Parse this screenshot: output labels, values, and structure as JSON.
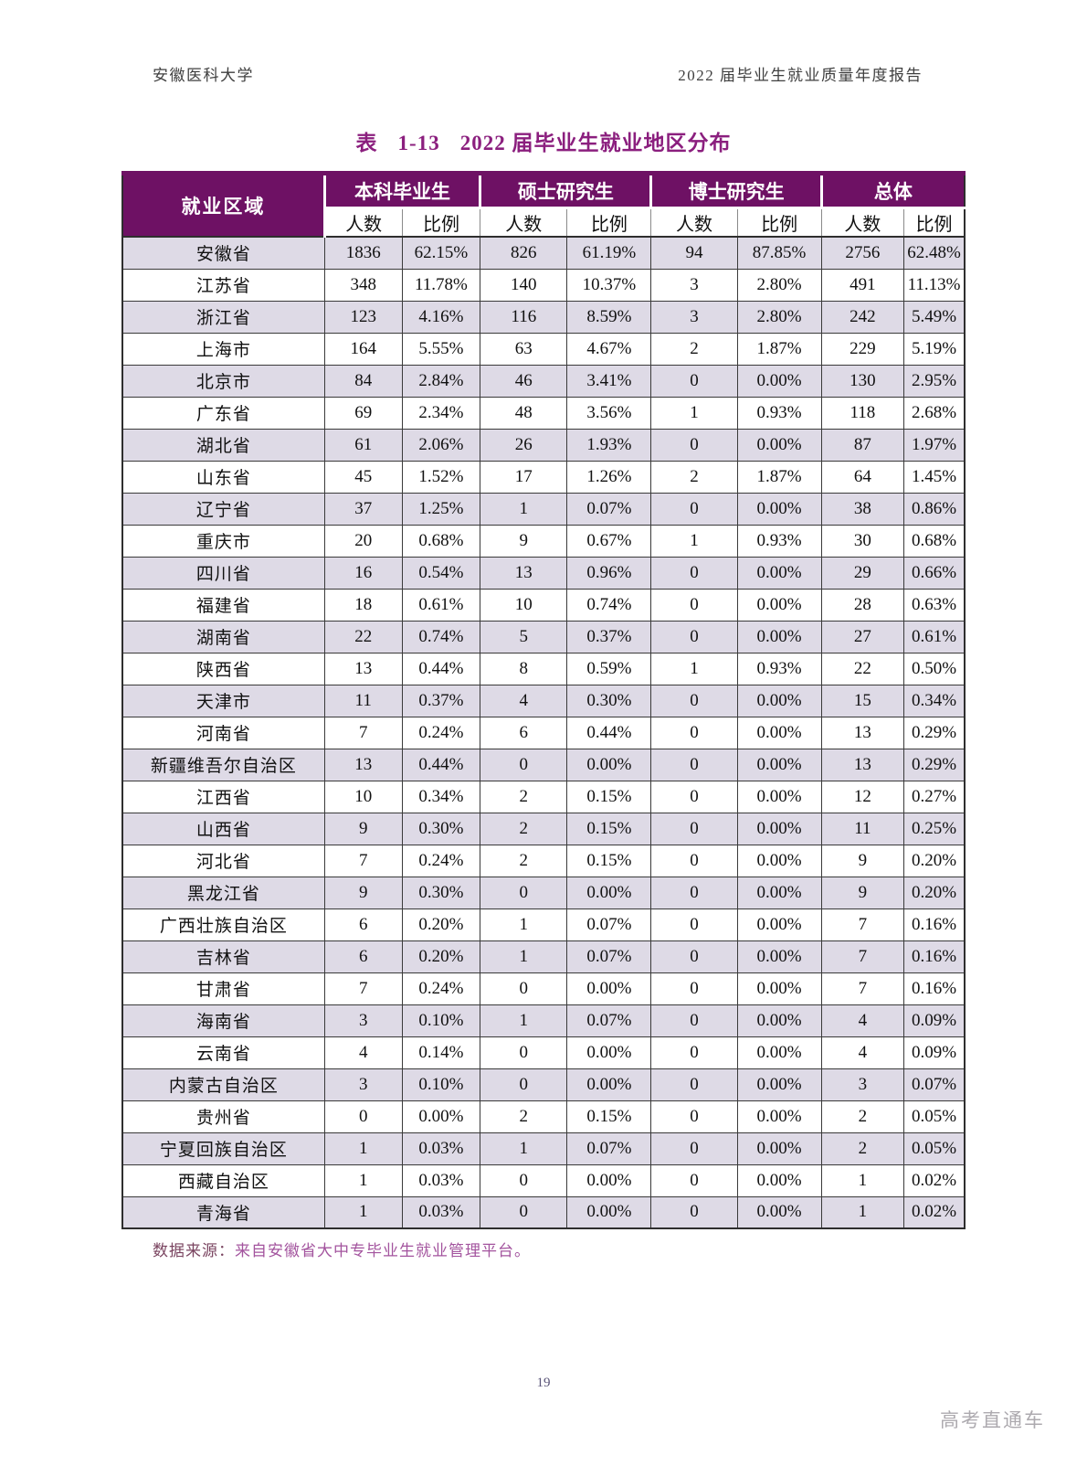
{
  "page": {
    "header_left": "安徽医科大学",
    "header_right": "2022 届毕业生就业质量年度报告",
    "page_number": "19",
    "watermark": "高考直通车"
  },
  "table": {
    "title": {
      "label": "表",
      "number": "1-13",
      "text": "2022 届毕业生就业地区分布"
    },
    "region_header": "就业区域",
    "groups": [
      "本科毕业生",
      "硕士研究生",
      "博士研究生",
      "总体"
    ],
    "subheaders": [
      "人数",
      "比例"
    ],
    "rows": [
      {
        "region": "安徽省",
        "values": [
          "1836",
          "62.15%",
          "826",
          "61.19%",
          "94",
          "87.85%",
          "2756",
          "62.48%"
        ]
      },
      {
        "region": "江苏省",
        "values": [
          "348",
          "11.78%",
          "140",
          "10.37%",
          "3",
          "2.80%",
          "491",
          "11.13%"
        ]
      },
      {
        "region": "浙江省",
        "values": [
          "123",
          "4.16%",
          "116",
          "8.59%",
          "3",
          "2.80%",
          "242",
          "5.49%"
        ]
      },
      {
        "region": "上海市",
        "values": [
          "164",
          "5.55%",
          "63",
          "4.67%",
          "2",
          "1.87%",
          "229",
          "5.19%"
        ]
      },
      {
        "region": "北京市",
        "values": [
          "84",
          "2.84%",
          "46",
          "3.41%",
          "0",
          "0.00%",
          "130",
          "2.95%"
        ]
      },
      {
        "region": "广东省",
        "values": [
          "69",
          "2.34%",
          "48",
          "3.56%",
          "1",
          "0.93%",
          "118",
          "2.68%"
        ]
      },
      {
        "region": "湖北省",
        "values": [
          "61",
          "2.06%",
          "26",
          "1.93%",
          "0",
          "0.00%",
          "87",
          "1.97%"
        ]
      },
      {
        "region": "山东省",
        "values": [
          "45",
          "1.52%",
          "17",
          "1.26%",
          "2",
          "1.87%",
          "64",
          "1.45%"
        ]
      },
      {
        "region": "辽宁省",
        "values": [
          "37",
          "1.25%",
          "1",
          "0.07%",
          "0",
          "0.00%",
          "38",
          "0.86%"
        ]
      },
      {
        "region": "重庆市",
        "values": [
          "20",
          "0.68%",
          "9",
          "0.67%",
          "1",
          "0.93%",
          "30",
          "0.68%"
        ]
      },
      {
        "region": "四川省",
        "values": [
          "16",
          "0.54%",
          "13",
          "0.96%",
          "0",
          "0.00%",
          "29",
          "0.66%"
        ]
      },
      {
        "region": "福建省",
        "values": [
          "18",
          "0.61%",
          "10",
          "0.74%",
          "0",
          "0.00%",
          "28",
          "0.63%"
        ]
      },
      {
        "region": "湖南省",
        "values": [
          "22",
          "0.74%",
          "5",
          "0.37%",
          "0",
          "0.00%",
          "27",
          "0.61%"
        ]
      },
      {
        "region": "陕西省",
        "values": [
          "13",
          "0.44%",
          "8",
          "0.59%",
          "1",
          "0.93%",
          "22",
          "0.50%"
        ]
      },
      {
        "region": "天津市",
        "values": [
          "11",
          "0.37%",
          "4",
          "0.30%",
          "0",
          "0.00%",
          "15",
          "0.34%"
        ]
      },
      {
        "region": "河南省",
        "values": [
          "7",
          "0.24%",
          "6",
          "0.44%",
          "0",
          "0.00%",
          "13",
          "0.29%"
        ]
      },
      {
        "region": "新疆维吾尔自治区",
        "values": [
          "13",
          "0.44%",
          "0",
          "0.00%",
          "0",
          "0.00%",
          "13",
          "0.29%"
        ]
      },
      {
        "region": "江西省",
        "values": [
          "10",
          "0.34%",
          "2",
          "0.15%",
          "0",
          "0.00%",
          "12",
          "0.27%"
        ]
      },
      {
        "region": "山西省",
        "values": [
          "9",
          "0.30%",
          "2",
          "0.15%",
          "0",
          "0.00%",
          "11",
          "0.25%"
        ]
      },
      {
        "region": "河北省",
        "values": [
          "7",
          "0.24%",
          "2",
          "0.15%",
          "0",
          "0.00%",
          "9",
          "0.20%"
        ]
      },
      {
        "region": "黑龙江省",
        "values": [
          "9",
          "0.30%",
          "0",
          "0.00%",
          "0",
          "0.00%",
          "9",
          "0.20%"
        ]
      },
      {
        "region": "广西壮族自治区",
        "values": [
          "6",
          "0.20%",
          "1",
          "0.07%",
          "0",
          "0.00%",
          "7",
          "0.16%"
        ]
      },
      {
        "region": "吉林省",
        "values": [
          "6",
          "0.20%",
          "1",
          "0.07%",
          "0",
          "0.00%",
          "7",
          "0.16%"
        ]
      },
      {
        "region": "甘肃省",
        "values": [
          "7",
          "0.24%",
          "0",
          "0.00%",
          "0",
          "0.00%",
          "7",
          "0.16%"
        ]
      },
      {
        "region": "海南省",
        "values": [
          "3",
          "0.10%",
          "1",
          "0.07%",
          "0",
          "0.00%",
          "4",
          "0.09%"
        ]
      },
      {
        "region": "云南省",
        "values": [
          "4",
          "0.14%",
          "0",
          "0.00%",
          "0",
          "0.00%",
          "4",
          "0.09%"
        ]
      },
      {
        "region": "内蒙古自治区",
        "values": [
          "3",
          "0.10%",
          "0",
          "0.00%",
          "0",
          "0.00%",
          "3",
          "0.07%"
        ]
      },
      {
        "region": "贵州省",
        "values": [
          "0",
          "0.00%",
          "2",
          "0.15%",
          "0",
          "0.00%",
          "2",
          "0.05%"
        ]
      },
      {
        "region": "宁夏回族自治区",
        "values": [
          "1",
          "0.03%",
          "1",
          "0.07%",
          "0",
          "0.00%",
          "2",
          "0.05%"
        ]
      },
      {
        "region": "西藏自治区",
        "values": [
          "1",
          "0.03%",
          "0",
          "0.00%",
          "0",
          "0.00%",
          "1",
          "0.02%"
        ]
      },
      {
        "region": "青海省",
        "values": [
          "1",
          "0.03%",
          "0",
          "0.00%",
          "0",
          "0.00%",
          "1",
          "0.02%"
        ]
      }
    ],
    "source_note_label": "数据来源：",
    "source_note_text": "来自安徽省大中专毕业生就业管理平台。"
  },
  "colors": {
    "header_bg": "#6E1164",
    "title": "#8B1F7E",
    "row_alt": "#DEDAE6",
    "border": "#3a3a3a",
    "source_label": "#7A4460",
    "source_text": "#A3549E",
    "page_number": "#5A5478",
    "watermark": "#ADAAAF"
  }
}
